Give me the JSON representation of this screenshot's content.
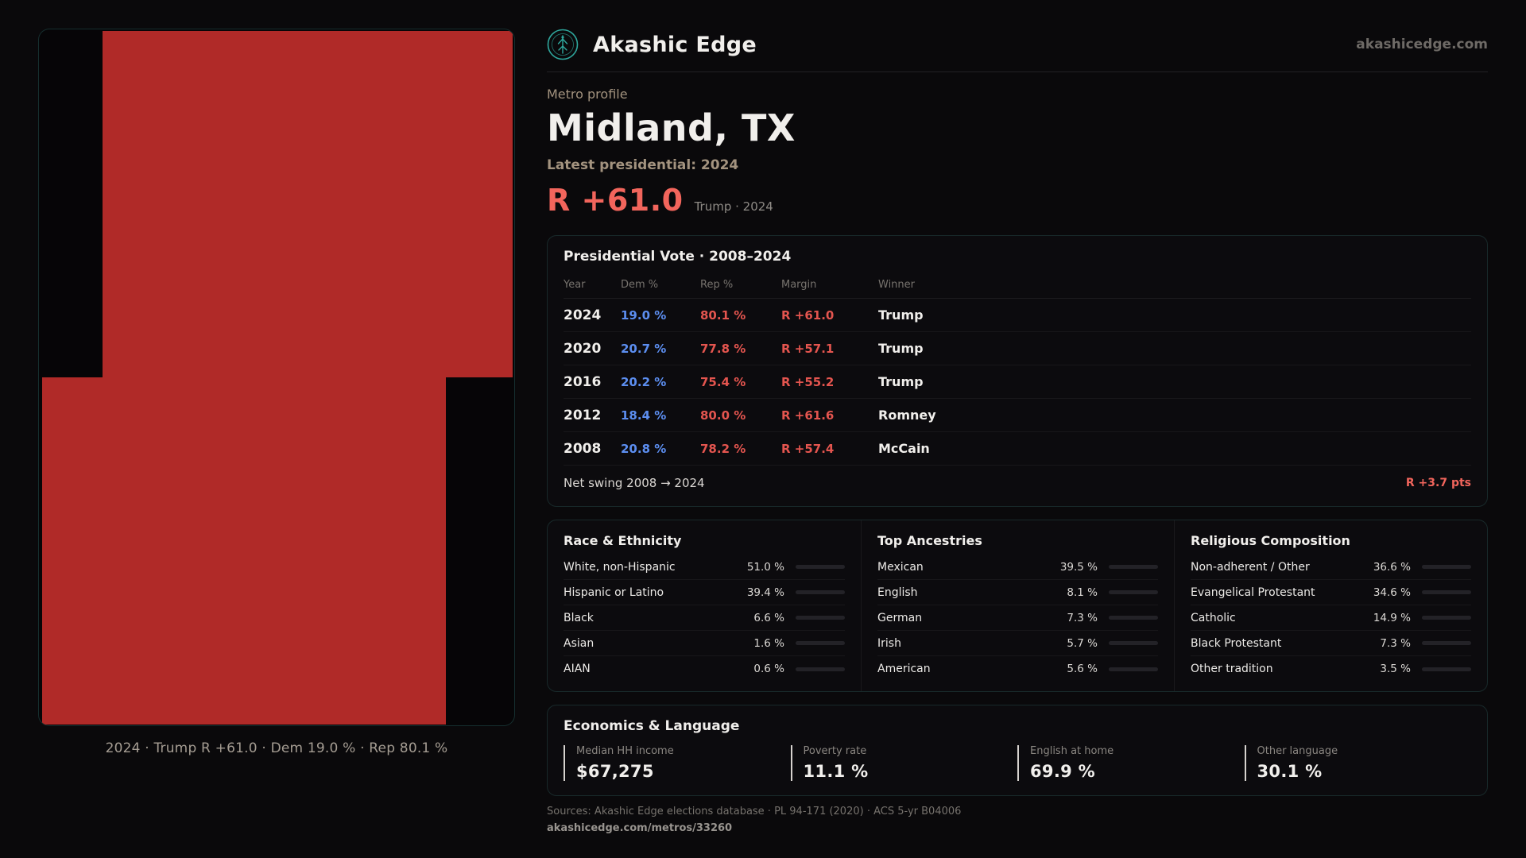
{
  "site": {
    "brand": "Akashic Edge",
    "domain": "akashicedge.com"
  },
  "colors": {
    "map_fill": "#b02a28",
    "rep_red": "#e4554f",
    "dem_blue": "#5c8ef0",
    "accent_red": "#f2655c",
    "teal_border": "#2fa89e"
  },
  "map": {
    "caption": "2024 · Trump R +61.0 · Dem 19.0 % · Rep 80.1 %"
  },
  "profile": {
    "kicker": "Metro profile",
    "title": "Midland, TX",
    "latest_label": "Latest presidential: 2024",
    "margin_big": "R +61.0",
    "margin_context": "Trump · 2024"
  },
  "vote_table": {
    "title": "Presidential Vote · 2008–2024",
    "columns": [
      "Year",
      "Dem %",
      "Rep %",
      "Margin",
      "Winner"
    ],
    "rows": [
      {
        "year": "2024",
        "dem": "19.0 %",
        "rep": "80.1 %",
        "margin": "R +61.0",
        "winner": "Trump"
      },
      {
        "year": "2020",
        "dem": "20.7 %",
        "rep": "77.8 %",
        "margin": "R +57.1",
        "winner": "Trump"
      },
      {
        "year": "2016",
        "dem": "20.2 %",
        "rep": "75.4 %",
        "margin": "R +55.2",
        "winner": "Trump"
      },
      {
        "year": "2012",
        "dem": "18.4 %",
        "rep": "80.0 %",
        "margin": "R +61.6",
        "winner": "Romney"
      },
      {
        "year": "2008",
        "dem": "20.8 %",
        "rep": "78.2 %",
        "margin": "R +57.4",
        "winner": "McCain"
      }
    ],
    "footer": {
      "label": "Net swing 2008 → 2024",
      "value": "R +3.7 pts"
    }
  },
  "demographics": {
    "race": {
      "title": "Race & Ethnicity",
      "rows": [
        {
          "label": "White, non-Hispanic",
          "value": "51.0 %",
          "pct": 51.0,
          "color": "#9aa0a8"
        },
        {
          "label": "Hispanic or Latino",
          "value": "39.4 %",
          "pct": 39.4,
          "color": "#d9a43e"
        },
        {
          "label": "Black",
          "value": "6.6 %",
          "pct": 6.6,
          "color": "#8b7bf0"
        },
        {
          "label": "Asian",
          "value": "1.6 %",
          "pct": 1.6,
          "color": "#9aa0a8"
        },
        {
          "label": "AIAN",
          "value": "0.6 %",
          "pct": 0.6,
          "color": "#9aa0a8"
        }
      ]
    },
    "ancestries": {
      "title": "Top Ancestries",
      "rows": [
        {
          "label": "Mexican",
          "value": "39.5 %",
          "pct": 39.5,
          "color": "#d9a43e"
        },
        {
          "label": "English",
          "value": "8.1 %",
          "pct": 8.1,
          "color": "#8b7bf0"
        },
        {
          "label": "German",
          "value": "7.3 %",
          "pct": 7.3,
          "color": "#8b7bf0"
        },
        {
          "label": "Irish",
          "value": "5.7 %",
          "pct": 5.7,
          "color": "#8b7bf0"
        },
        {
          "label": "American",
          "value": "5.6 %",
          "pct": 5.6,
          "color": "#8b7bf0"
        }
      ]
    },
    "religion": {
      "title": "Religious Composition",
      "rows": [
        {
          "label": "Non-adherent / Other",
          "value": "36.6 %",
          "pct": 36.6,
          "color": "#9aa0a8"
        },
        {
          "label": "Evangelical Protestant",
          "value": "34.6 %",
          "pct": 34.6,
          "color": "#e0607a"
        },
        {
          "label": "Catholic",
          "value": "14.9 %",
          "pct": 14.9,
          "color": "#d9b33e"
        },
        {
          "label": "Black Protestant",
          "value": "7.3 %",
          "pct": 7.3,
          "color": "#8b7bf0"
        },
        {
          "label": "Other tradition",
          "value": "3.5 %",
          "pct": 3.5,
          "color": "#9aa0a8"
        }
      ]
    }
  },
  "economics": {
    "title": "Economics & Language",
    "stats": [
      {
        "label": "Median HH income",
        "value": "$67,275"
      },
      {
        "label": "Poverty rate",
        "value": "11.1 %"
      },
      {
        "label": "English at home",
        "value": "69.9 %"
      },
      {
        "label": "Other language",
        "value": "30.1 %"
      }
    ]
  },
  "footer": {
    "sources": "Sources: Akashic Edge elections database · PL 94-171 (2020) · ACS 5-yr B04006",
    "permalink": "akashicedge.com/metros/33260"
  }
}
